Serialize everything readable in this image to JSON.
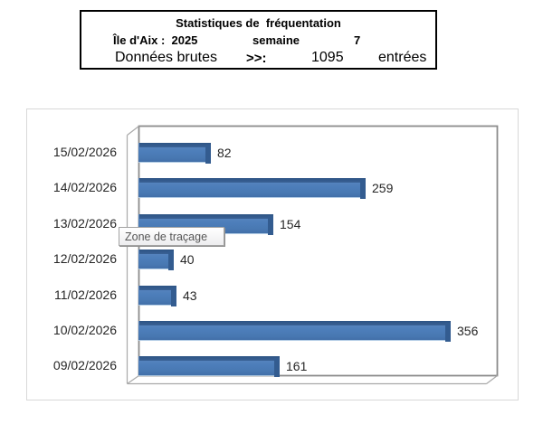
{
  "header": {
    "title": "Statistiques de  fréquentation",
    "location_year": "Île d'Aix :  2025",
    "week_label": "semaine",
    "week_value": "7",
    "data_label": "Données brutes",
    "arrow": ">>:",
    "count": "1095",
    "unit": "entrées"
  },
  "tooltip": "Zone de traçage",
  "chart_data": {
    "type": "bar",
    "orientation": "horizontal",
    "style": "3d",
    "title": "",
    "xlabel": "",
    "ylabel": "",
    "categories": [
      "15/02/2026",
      "14/02/2026",
      "13/02/2026",
      "12/02/2026",
      "11/02/2026",
      "10/02/2026",
      "09/02/2026"
    ],
    "series": [
      {
        "name": "entrées",
        "values": [
          82,
          259,
          154,
          40,
          43,
          356,
          161
        ]
      }
    ],
    "values": [
      82,
      259,
      154,
      40,
      43,
      356,
      161
    ],
    "xlim": [
      0,
      400
    ],
    "grid": false,
    "legend": false,
    "data_labels": true,
    "bar_color": "#4F81BD",
    "bar_dark_color": "#2F5A8B",
    "frame_color": "#8c8c8c"
  }
}
